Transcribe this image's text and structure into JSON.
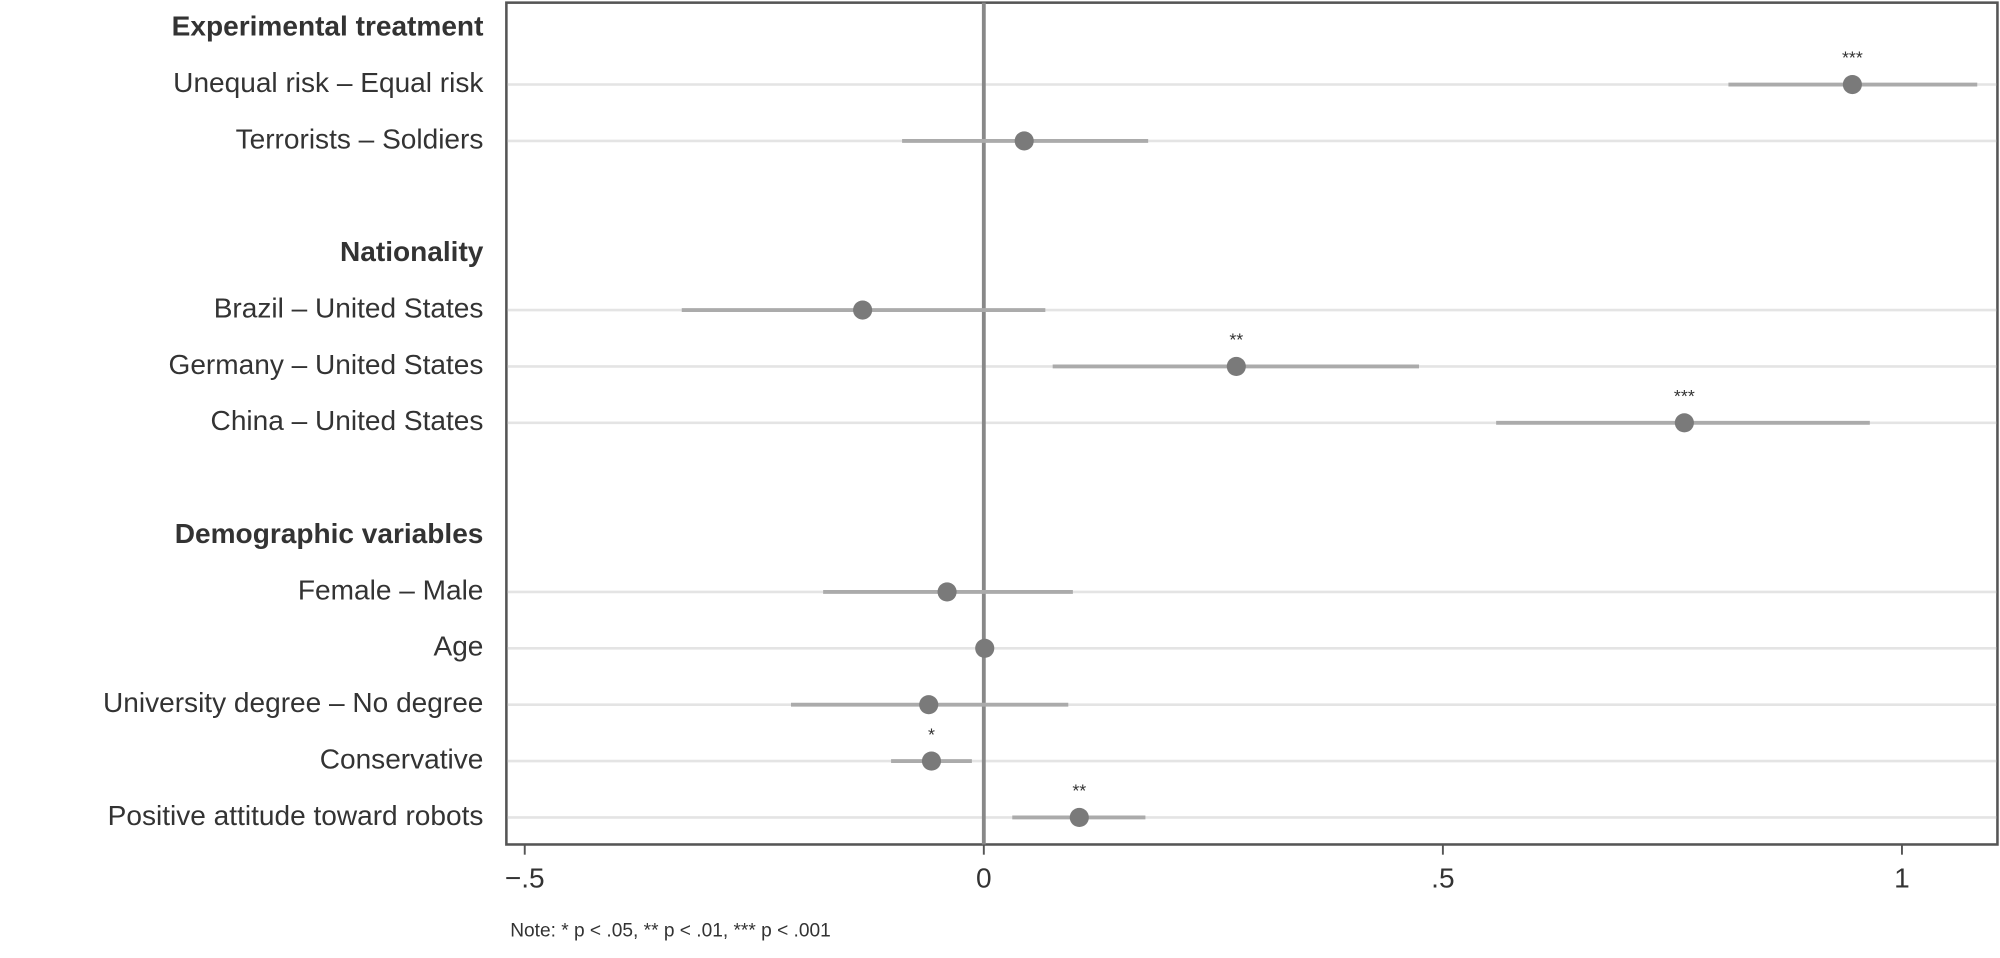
{
  "chart_data": {
    "type": "coefplot",
    "groups": [
      {
        "title": "Experimental treatment",
        "categories": [
          "Unequal risk – Equal risk",
          "Terrorists – Soldiers"
        ],
        "values": [
          0.946,
          0.044
        ],
        "ci_low": [
          0.811,
          -0.089
        ],
        "ci_high": [
          1.082,
          0.179
        ],
        "significance": [
          "***",
          null
        ]
      },
      {
        "title": "Nationality",
        "categories": [
          "Brazil – United States",
          "Germany – United States",
          "China – United States"
        ],
        "values": [
          -0.132,
          0.275,
          0.763
        ],
        "ci_low": [
          -0.329,
          0.075,
          0.558
        ],
        "ci_high": [
          0.067,
          0.474,
          0.965
        ],
        "significance": [
          null,
          "**",
          "***"
        ]
      },
      {
        "title": "Demographic variables",
        "categories": [
          "Female – Male",
          "Age",
          "University degree – No degree",
          "Conservative",
          "Positive attitude toward robots"
        ],
        "values": [
          -0.04,
          0.001,
          -0.06,
          -0.057,
          0.104
        ],
        "ci_low": [
          -0.175,
          0,
          -0.21,
          -0.101,
          0.031
        ],
        "ci_high": [
          0.097,
          0.002,
          0.092,
          -0.013,
          0.176
        ],
        "significance": [
          null,
          null,
          null,
          "*",
          "**"
        ]
      }
    ],
    "xlim": [
      -0.52,
      1.104
    ],
    "xticks": [
      {
        "value": -0.5,
        "label": "−.5"
      },
      0,
      {
        "value": 0.5,
        "label": ".5"
      },
      1
    ],
    "reference_line": 0,
    "grid": true,
    "point_color": "#7a7a7a",
    "ci_color": "#ababab",
    "note": "Note: * p < .05, ** p < .01, *** p < .001"
  }
}
